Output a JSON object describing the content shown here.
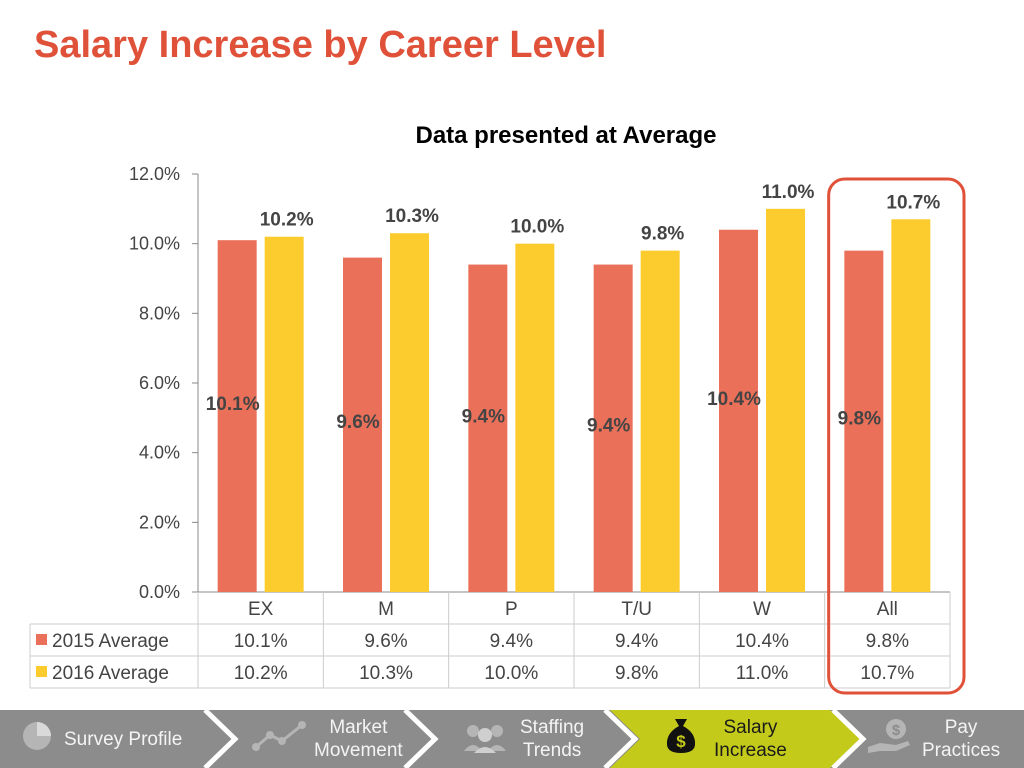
{
  "slide_title": "Salary Increase by Career Level",
  "colors": {
    "series_2015": "#ea7059",
    "series_2016": "#fccc2e",
    "title": "#e0513a",
    "highlight": "#e0513a",
    "nav_bg": "#8c8c8c",
    "nav_active": "#c3ca1a"
  },
  "chart_data": {
    "type": "bar",
    "title": "Data presented at Average",
    "categories": [
      "EX",
      "M",
      "P",
      "T/U",
      "W",
      "All"
    ],
    "series": [
      {
        "name": "2015 Average",
        "values": [
          10.1,
          9.6,
          9.4,
          9.4,
          10.4,
          9.8
        ]
      },
      {
        "name": "2016 Average",
        "values": [
          10.2,
          10.3,
          10.0,
          9.8,
          11.0,
          10.7
        ]
      }
    ],
    "value_labels": [
      [
        "10.1%",
        "9.6%",
        "9.4%",
        "9.4%",
        "10.4%",
        "9.8%"
      ],
      [
        "10.2%",
        "10.3%",
        "10.0%",
        "9.8%",
        "11.0%",
        "10.7%"
      ]
    ],
    "y_ticks": [
      "0.0%",
      "2.0%",
      "4.0%",
      "6.0%",
      "8.0%",
      "10.0%",
      "12.0%"
    ],
    "ylim": [
      0,
      12
    ],
    "legend": "data table below chart",
    "highlighted_category": "All",
    "grid": false
  },
  "nav": {
    "items": [
      {
        "label_lines": [
          "Survey Profile"
        ],
        "icon": "pie-chart-icon"
      },
      {
        "label_lines": [
          "Market",
          "Movement"
        ],
        "icon": "line-graph-icon"
      },
      {
        "label_lines": [
          "Staffing",
          "Trends"
        ],
        "icon": "people-group-icon"
      },
      {
        "label_lines": [
          "Salary",
          "Increase"
        ],
        "icon": "money-bag-icon"
      },
      {
        "label_lines": [
          "Pay",
          "Practices"
        ],
        "icon": "hand-coin-icon"
      }
    ],
    "active_index": 3
  }
}
